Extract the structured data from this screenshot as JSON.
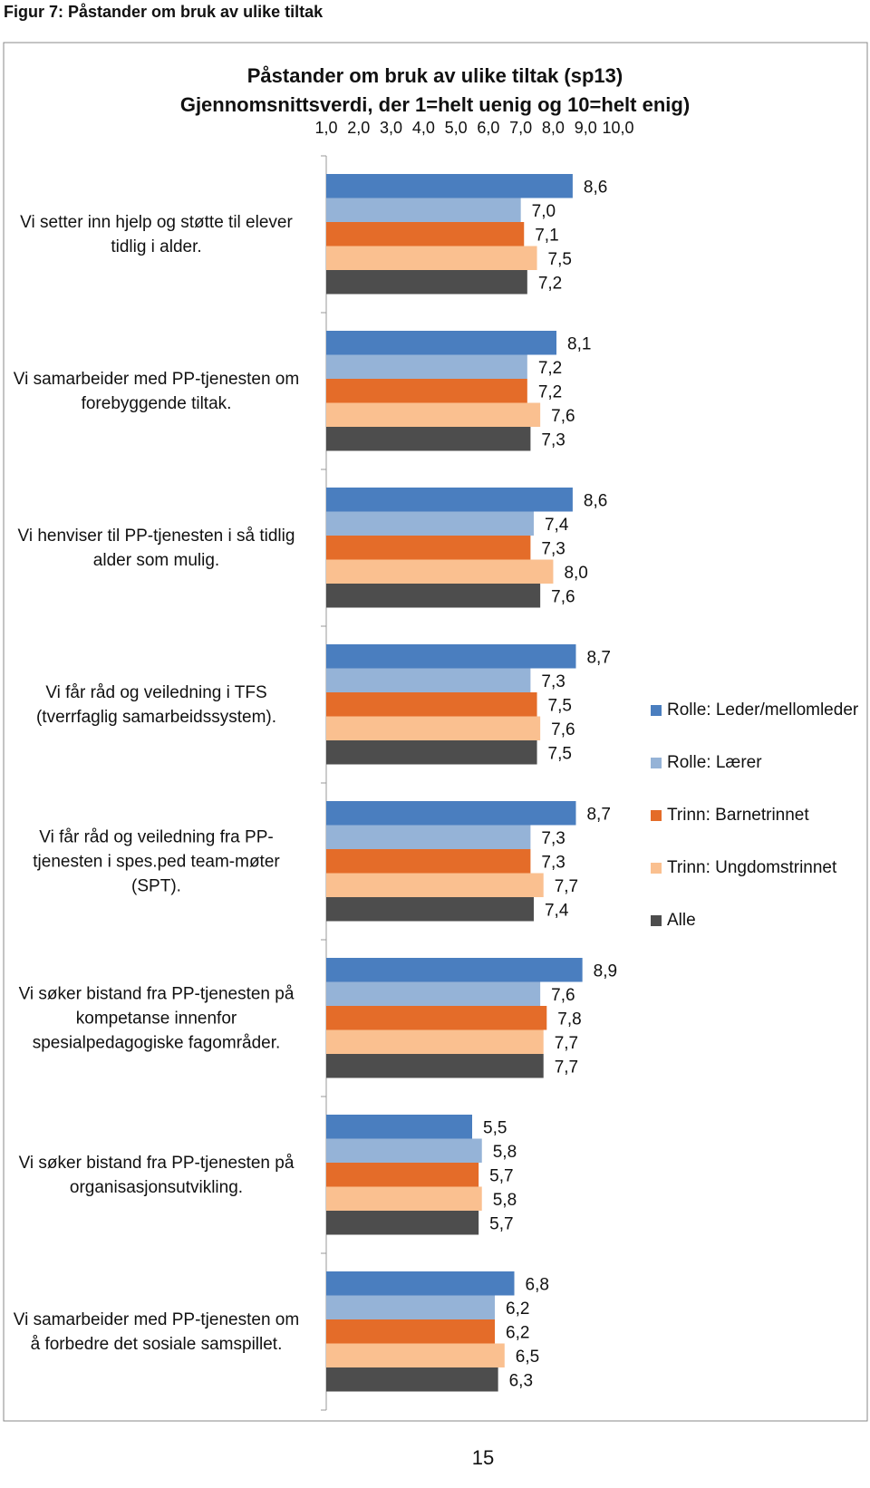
{
  "caption": "Figur 7: Påstander om bruk av ulike tiltak",
  "page_number": "15",
  "chart_data": {
    "type": "hbar",
    "title": "Påstander om bruk av ulike tiltak  (sp13)",
    "subtitle": "Gjennomsnittsverdi, der 1=helt uenig og 10=helt enig)",
    "categories": [
      "Vi setter inn hjelp og støtte til elever tidlig i alder.",
      "Vi samarbeider med PP-tjenesten om forebyggende tiltak.",
      "Vi henviser til PP-tjenesten i så tidlig alder som mulig.",
      "Vi får råd og veiledning i TFS (tverrfaglig samarbeidssystem).",
      "Vi får råd og veiledning fra PP-tjenesten i spes.ped team-møter (SPT).",
      "Vi søker bistand fra PP-tjenesten på kompetanse innenfor spesialpedagogiske fagområder.",
      "Vi søker bistand fra PP-tjenesten på organisasjonsutvikling.",
      "Vi samarbeider med PP-tjenesten om å forbedre det sosiale samspillet."
    ],
    "xlim": [
      1,
      10
    ],
    "xticks": [
      {
        "value": 1,
        "label": "1,0"
      },
      {
        "value": 2,
        "label": "2,0"
      },
      {
        "value": 3,
        "label": "3,0"
      },
      {
        "value": 4,
        "label": "4,0"
      },
      {
        "value": 5,
        "label": "5,0"
      },
      {
        "value": 6,
        "label": "6,0"
      },
      {
        "value": 7,
        "label": "7,0"
      },
      {
        "value": 8,
        "label": "8,0"
      },
      {
        "value": 9,
        "label": "9,0"
      },
      {
        "value": 10,
        "label": "10,0"
      }
    ],
    "legend": "right",
    "series": [
      {
        "name": "Rolle: Leder/mellomleder",
        "color": "#4a7ebf",
        "values": [
          8.6,
          8.1,
          8.6,
          8.7,
          8.7,
          8.9,
          5.5,
          6.8
        ],
        "value_labels": [
          "8,6",
          "8,1",
          "8,6",
          "8,7",
          "8,7",
          "8,9",
          "5,5",
          "6,8"
        ]
      },
      {
        "name": "Rolle: Lærer",
        "color": "#95b3d7",
        "values": [
          7.0,
          7.2,
          7.4,
          7.3,
          7.3,
          7.6,
          5.8,
          6.2
        ],
        "value_labels": [
          "7,0",
          "7,2",
          "7,4",
          "7,3",
          "7,3",
          "7,6",
          "5,8",
          "6,2"
        ]
      },
      {
        "name": "Trinn: Barnetrinnet",
        "color": "#e46c29",
        "values": [
          7.1,
          7.2,
          7.3,
          7.5,
          7.3,
          7.8,
          5.7,
          6.2
        ],
        "value_labels": [
          "7,1",
          "7,2",
          "7,3",
          "7,5",
          "7,3",
          "7,8",
          "5,7",
          "6,2"
        ]
      },
      {
        "name": "Trinn: Ungdomstrinnet",
        "color": "#fac090",
        "values": [
          7.5,
          7.6,
          8.0,
          7.6,
          7.7,
          7.7,
          5.8,
          6.5
        ],
        "value_labels": [
          "7,5",
          "7,6",
          "8,0",
          "7,6",
          "7,7",
          "7,7",
          "5,8",
          "6,5"
        ]
      },
      {
        "name": "Alle",
        "color": "#4d4d4d",
        "values": [
          7.2,
          7.3,
          7.6,
          7.5,
          7.4,
          7.7,
          5.7,
          6.3
        ],
        "value_labels": [
          "7,2",
          "7,3",
          "7,6",
          "7,5",
          "7,4",
          "7,7",
          "5,7",
          "6,3"
        ]
      }
    ]
  }
}
